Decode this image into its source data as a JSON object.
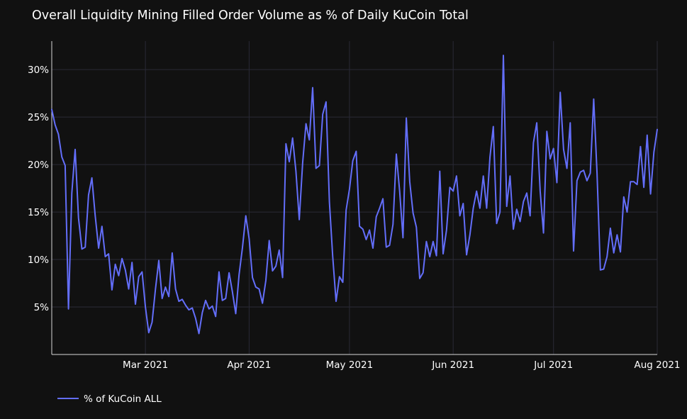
{
  "chart_data": {
    "type": "line",
    "title": "Overall Liquidity Mining Filled Order Volume as % of Daily KuCoin Total",
    "xlabel": "",
    "ylabel": "",
    "x_range": [
      "2021-02-01",
      "2021-08-01"
    ],
    "ylim": [
      0,
      33
    ],
    "y_ticks": [
      5,
      10,
      15,
      20,
      25,
      30
    ],
    "y_tick_labels": [
      "5%",
      "10%",
      "15%",
      "20%",
      "25%",
      "30%"
    ],
    "x_ticks": [
      "2021-03-01",
      "2021-04-01",
      "2021-05-01",
      "2021-06-01",
      "2021-07-01",
      "2021-08-01"
    ],
    "x_tick_labels": [
      "Mar 2021",
      "Apr 2021",
      "May 2021",
      "Jun 2021",
      "Jul 2021",
      "Aug 2021"
    ],
    "grid": true,
    "legend": "bottom-left",
    "series": [
      {
        "name": "% of KuCoin ALL",
        "color": "#636efa",
        "x_start": "2021-02-01",
        "y": [
          25.8,
          24.2,
          23.2,
          20.8,
          19.9,
          4.8,
          17.0,
          21.6,
          14.4,
          11.1,
          11.3,
          16.8,
          18.6,
          14.6,
          11.2,
          13.5,
          10.3,
          10.6,
          6.8,
          9.5,
          8.3,
          10.1,
          8.9,
          6.9,
          9.7,
          5.3,
          8.2,
          8.7,
          5.0,
          2.3,
          3.4,
          6.9,
          9.9,
          5.9,
          7.1,
          6.1,
          10.7,
          6.9,
          5.6,
          5.8,
          5.2,
          4.7,
          4.9,
          3.8,
          2.2,
          4.4,
          5.7,
          4.8,
          5.1,
          4.0,
          8.7,
          5.7,
          5.9,
          8.6,
          6.6,
          4.3,
          8.4,
          11.2,
          14.6,
          12.2,
          8.1,
          7.1,
          6.9,
          5.4,
          7.8,
          12.0,
          8.8,
          9.3,
          11.0,
          8.1,
          22.2,
          20.3,
          22.8,
          19.3,
          14.2,
          20.2,
          24.3,
          22.6,
          28.1,
          19.6,
          19.9,
          25.3,
          26.6,
          16.1,
          10.3,
          5.6,
          8.2,
          7.6,
          15.2,
          17.4,
          20.4,
          21.4,
          13.5,
          13.2,
          12.1,
          13.1,
          11.2,
          14.5,
          15.4,
          16.4,
          11.3,
          11.5,
          13.7,
          21.1,
          17.2,
          12.3,
          24.9,
          18.2,
          14.9,
          13.4,
          8.0,
          8.6,
          11.9,
          10.3,
          11.9,
          10.4,
          19.3,
          10.6,
          13.1,
          17.6,
          17.2,
          18.8,
          14.6,
          15.9,
          10.5,
          12.6,
          15.4,
          17.2,
          15.4,
          18.8,
          15.4,
          20.8,
          24.0,
          13.8,
          15.0,
          31.5,
          15.6,
          18.8,
          13.2,
          15.3,
          14.0,
          16.1,
          17.0,
          14.6,
          22.3,
          24.4,
          17.2,
          12.8,
          23.5,
          20.6,
          21.7,
          18.1,
          27.6,
          21.6,
          19.6,
          24.4,
          10.9,
          18.3,
          19.2,
          19.4,
          18.3,
          19.1,
          26.9,
          19.1,
          8.9,
          9.0,
          10.3,
          13.3,
          10.7,
          12.6,
          10.8,
          16.6,
          15.0,
          18.2,
          18.2,
          17.9,
          21.9,
          17.6,
          23.1,
          16.9,
          21.3,
          23.7
        ]
      }
    ]
  }
}
